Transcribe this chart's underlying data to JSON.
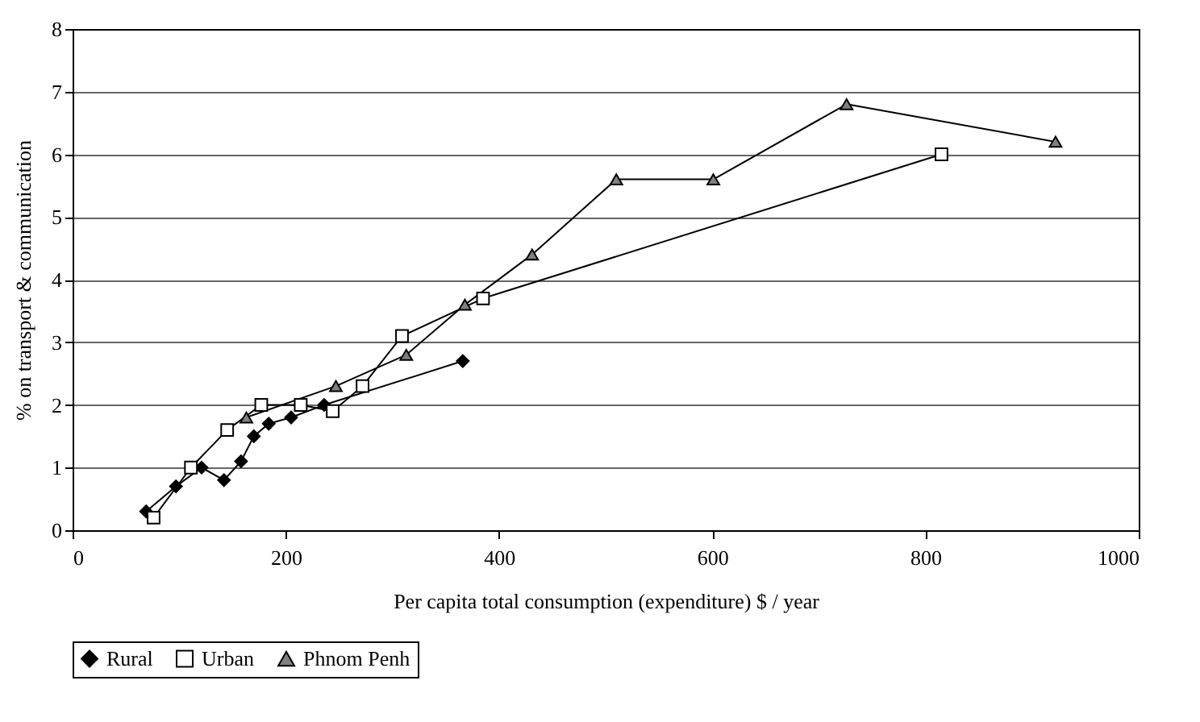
{
  "chart_data": {
    "type": "line",
    "xlabel": "Per capita total consumption (expenditure) $ / year",
    "ylabel": "% on transport & communication",
    "xlim": [
      0,
      1000
    ],
    "xticks": [
      0,
      200,
      400,
      600,
      800,
      1000
    ],
    "ylim": [
      0,
      8
    ],
    "yticks": [
      0,
      1,
      2,
      3,
      4,
      5,
      6,
      7,
      8
    ],
    "grid": "y",
    "legend": "bottom",
    "series": [
      {
        "name": "Rural",
        "color": "#000000",
        "marker": "diamond",
        "x": [
          69,
          97,
          121,
          142,
          158,
          170,
          184,
          205,
          236,
          366
        ],
        "values": [
          0.3,
          0.7,
          1.0,
          0.8,
          1.1,
          1.5,
          1.7,
          1.8,
          2.0,
          2.7
        ]
      },
      {
        "name": "Urban",
        "color": "#ffffff",
        "marker": "square",
        "x": [
          76,
          111,
          145,
          177,
          214,
          244,
          272,
          309,
          385,
          815
        ],
        "values": [
          0.2,
          1.0,
          1.6,
          2.0,
          2.0,
          1.9,
          2.3,
          3.1,
          3.7,
          6.0
        ]
      },
      {
        "name": "Phnom Penh",
        "color": "#808080",
        "marker": "triangle",
        "x": [
          163,
          247,
          313,
          368,
          431,
          510,
          601,
          726,
          922
        ],
        "values": [
          1.8,
          2.3,
          2.8,
          3.6,
          4.4,
          5.6,
          5.6,
          6.8,
          6.2
        ]
      }
    ]
  }
}
